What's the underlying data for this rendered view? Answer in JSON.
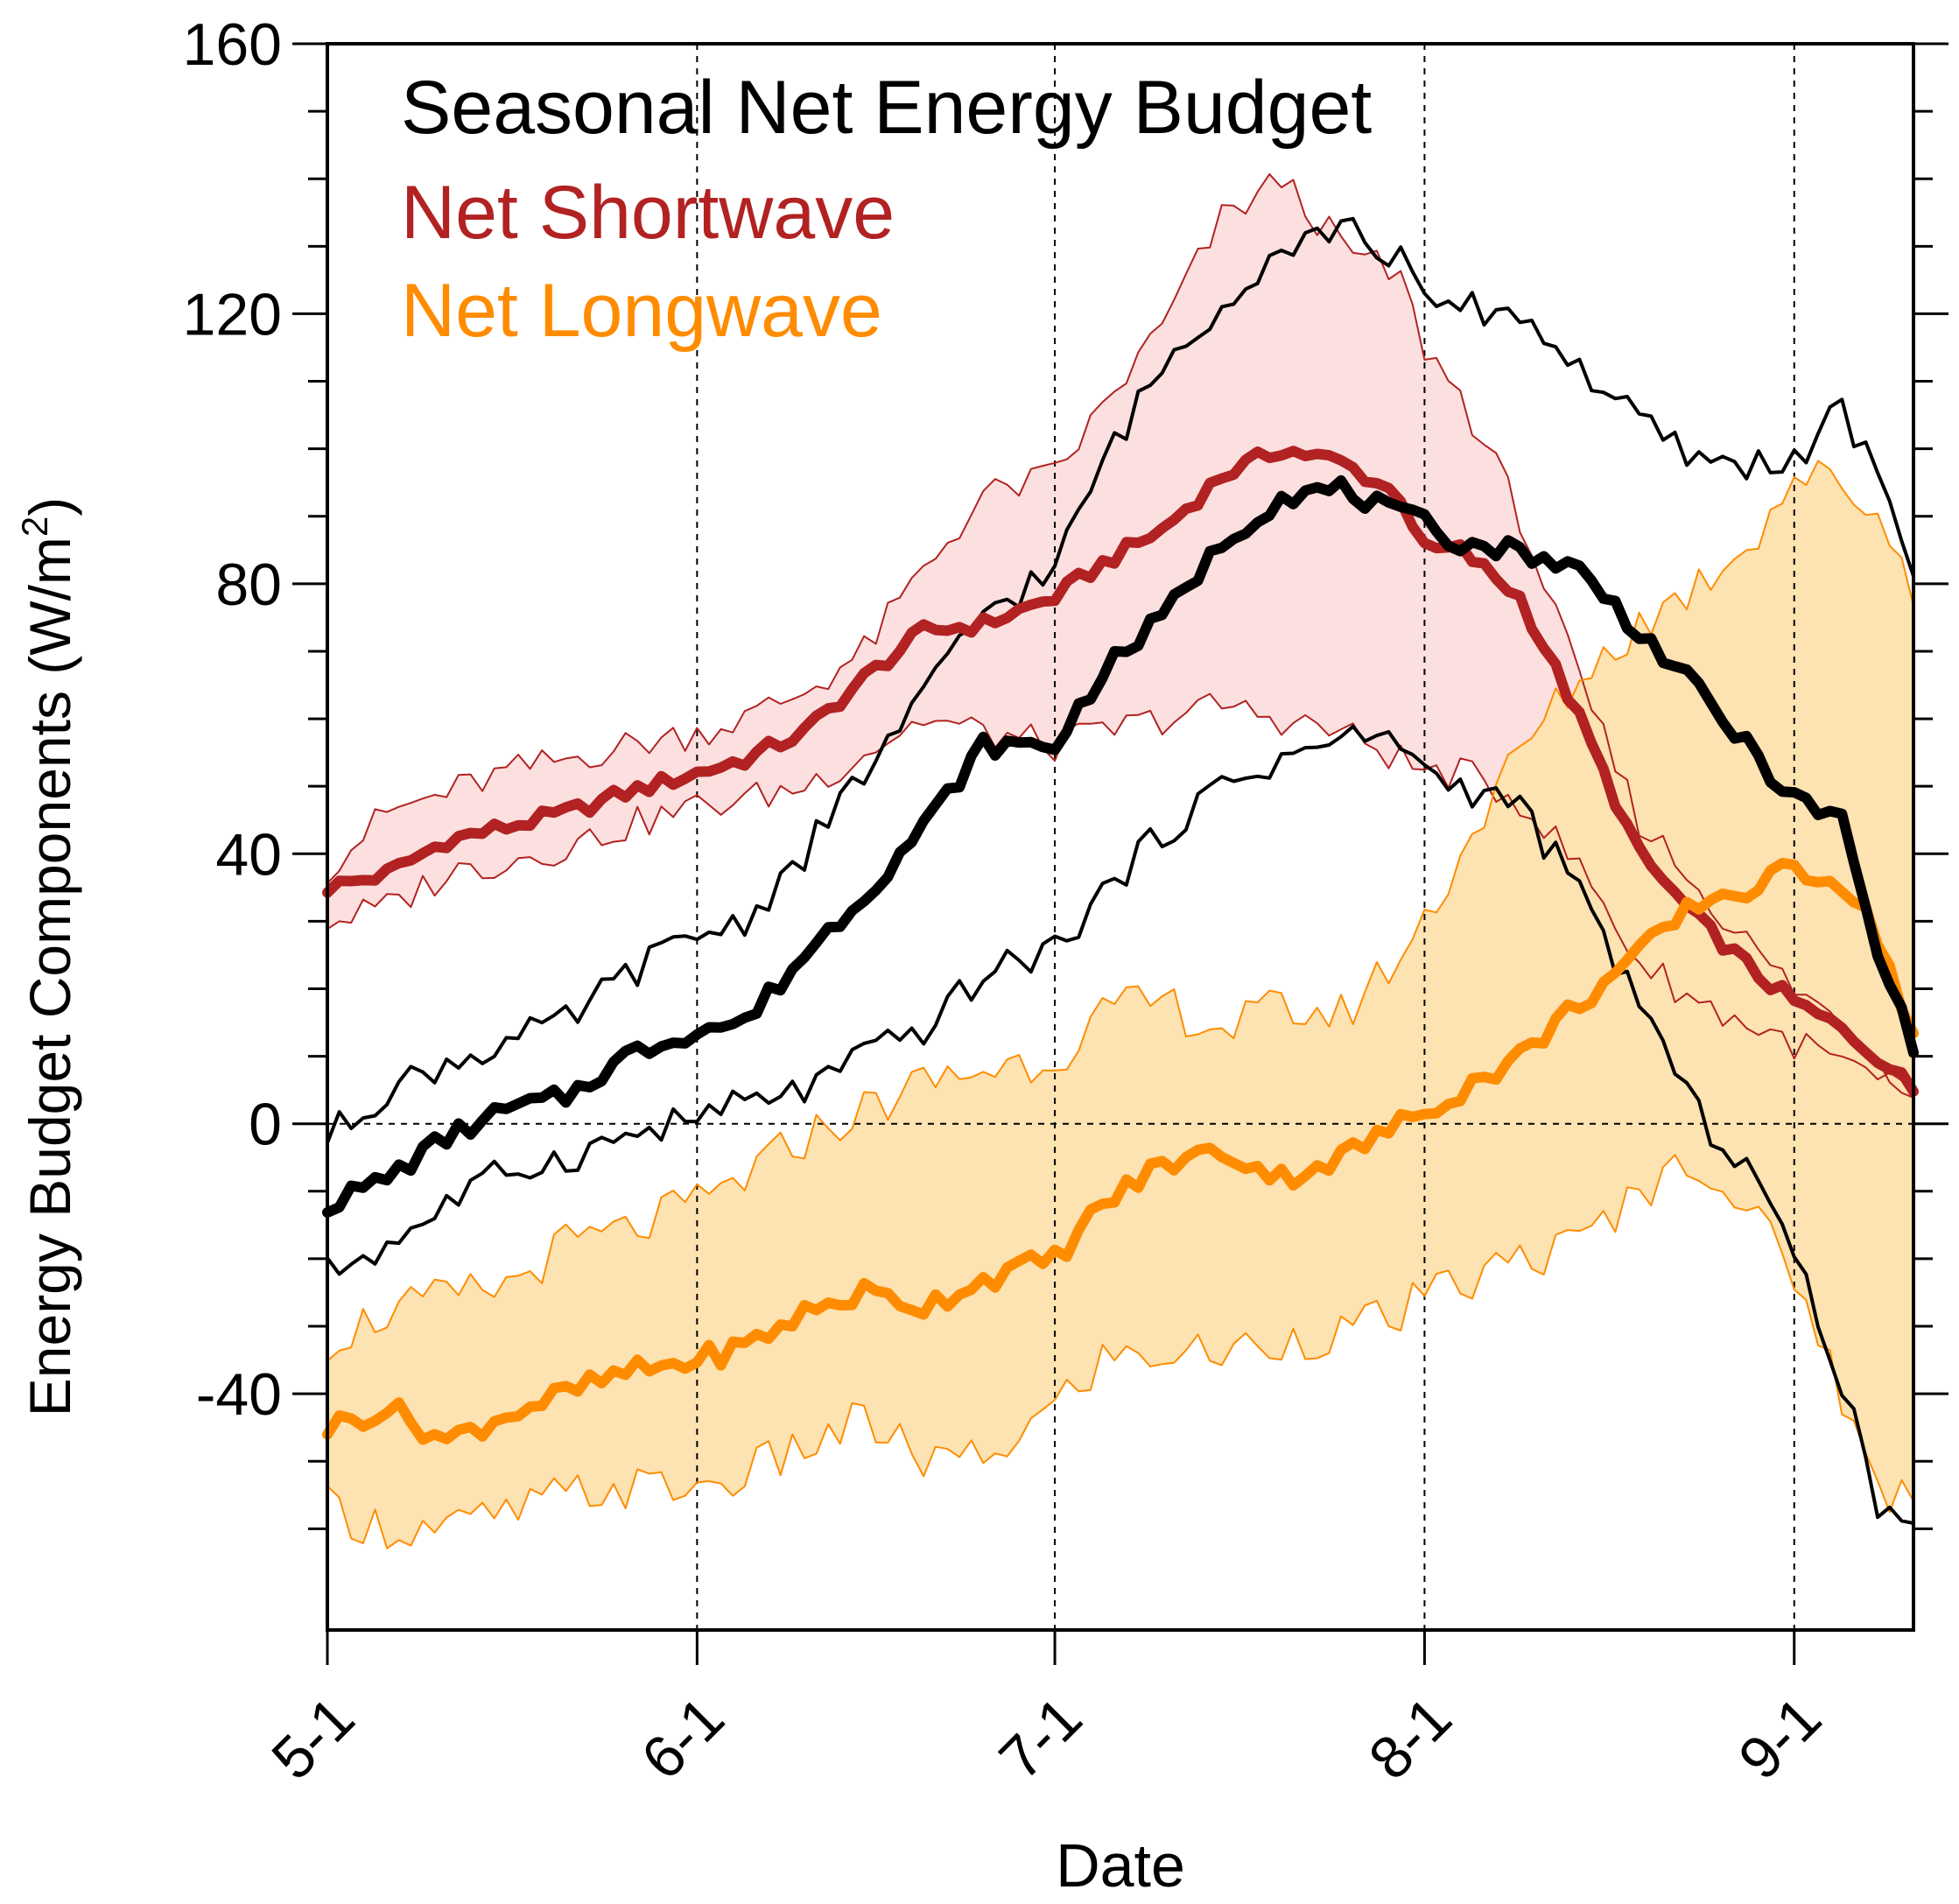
{
  "chart_data": {
    "type": "line",
    "title": "Seasonal Net Energy Budget",
    "xlabel": "Date",
    "ylabel_main": "Energy Budget Components (W/m",
    "ylabel_sup": "2",
    "ylabel_close": ")",
    "xlim": [
      0,
      133
    ],
    "ylim": [
      -75,
      160
    ],
    "yticks": [
      160,
      120,
      80,
      40,
      0,
      -40
    ],
    "ytick_labels": [
      "160",
      "120",
      "80",
      "40",
      "0",
      "-40"
    ],
    "xticks": [
      0,
      31,
      61,
      92,
      123
    ],
    "xtick_labels": [
      "5-1",
      "6-1",
      "7-1",
      "8-1",
      "9-1"
    ],
    "grid": "dashed verticals at month starts, dashed zero line",
    "legend": [
      {
        "label": "Net Shortwave",
        "color": "#b22222"
      },
      {
        "label": "Net Longwave",
        "color": "#ff8c00"
      }
    ],
    "colors": {
      "shortwave": "#b22222",
      "shortwave_band": "#fbe0df",
      "longwave": "#ff8c00",
      "longwave_band": "#fde2b2",
      "net": "#000000"
    },
    "key_x": [
      0,
      5,
      10,
      15,
      20,
      25,
      31,
      35,
      40,
      45,
      50,
      55,
      61,
      65,
      70,
      75,
      80,
      85,
      90,
      92,
      95,
      100,
      105,
      110,
      115,
      120,
      123,
      127,
      130,
      133
    ],
    "series": [
      {
        "name": "Net Shortwave",
        "role": "mean",
        "values": [
          35,
          37,
          42,
          44,
          46,
          49,
          52,
          54,
          58,
          66,
          73,
          74,
          78,
          83,
          88,
          96,
          100,
          98,
          93,
          85,
          85,
          78,
          60,
          40,
          30,
          22,
          18,
          14,
          10,
          5
        ]
      },
      {
        "role": "shortwave_upper",
        "values": [
          38,
          46,
          49,
          52,
          54,
          56,
          58,
          60,
          64,
          70,
          82,
          93,
          96,
          106,
          118,
          134,
          140,
          130,
          125,
          115,
          108,
          90,
          65,
          45,
          35,
          25,
          20,
          15,
          10,
          5
        ]
      },
      {
        "role": "shortwave_lower",
        "values": [
          30,
          32,
          37,
          39,
          41,
          44,
          47,
          48,
          50,
          55,
          60,
          58,
          56,
          58,
          60,
          62,
          60,
          58,
          54,
          52,
          52,
          48,
          38,
          24,
          18,
          14,
          12,
          9,
          6,
          4
        ]
      },
      {
        "name": "Net Longwave",
        "role": "mean",
        "values": [
          -45,
          -42,
          -47,
          -43,
          -40,
          -37,
          -35,
          -33,
          -28,
          -25,
          -27,
          -23,
          -20,
          -12,
          -6,
          -4,
          -8,
          -5,
          0,
          2,
          5,
          10,
          18,
          25,
          33,
          35,
          38,
          36,
          28,
          13
        ]
      },
      {
        "role": "longwave_upper",
        "values": [
          -32,
          -28,
          -26,
          -24,
          -18,
          -16,
          -12,
          -8,
          -2,
          2,
          6,
          8,
          10,
          16,
          18,
          14,
          17,
          16,
          25,
          30,
          40,
          55,
          66,
          74,
          80,
          88,
          96,
          95,
          90,
          80
        ]
      },
      {
        "role": "longwave_lower",
        "values": [
          -57,
          -60,
          -60,
          -58,
          -55,
          -54,
          -54,
          -52,
          -48,
          -44,
          -50,
          -50,
          -42,
          -35,
          -34,
          -34,
          -32,
          -31,
          -28,
          -26,
          -24,
          -20,
          -18,
          -10,
          -5,
          -15,
          -22,
          -40,
          -55,
          -54
        ]
      },
      {
        "name": "Net",
        "role": "mean",
        "values": [
          -12,
          -8,
          -2,
          2,
          4,
          10,
          14,
          15,
          25,
          34,
          44,
          56,
          56,
          67,
          75,
          86,
          93,
          94,
          90,
          89,
          86,
          85,
          82,
          73,
          64,
          54,
          48,
          45,
          25,
          12
        ]
      },
      {
        "role": "net_upper",
        "values": [
          -2,
          5,
          9,
          12,
          15,
          22,
          28,
          30,
          40,
          52,
          63,
          76,
          82,
          98,
          112,
          122,
          130,
          133,
          128,
          121,
          121,
          120,
          112,
          104,
          98,
          98,
          98,
          106,
          95,
          82
        ]
      },
      {
        "role": "net_lower",
        "values": [
          -22,
          -18,
          -12,
          -7,
          -5,
          -2,
          1,
          3,
          5,
          10,
          14,
          22,
          26,
          34,
          43,
          50,
          54,
          57,
          57,
          52,
          50,
          47,
          34,
          18,
          1,
          -8,
          -20,
          -38,
          -58,
          -57
        ]
      }
    ]
  }
}
